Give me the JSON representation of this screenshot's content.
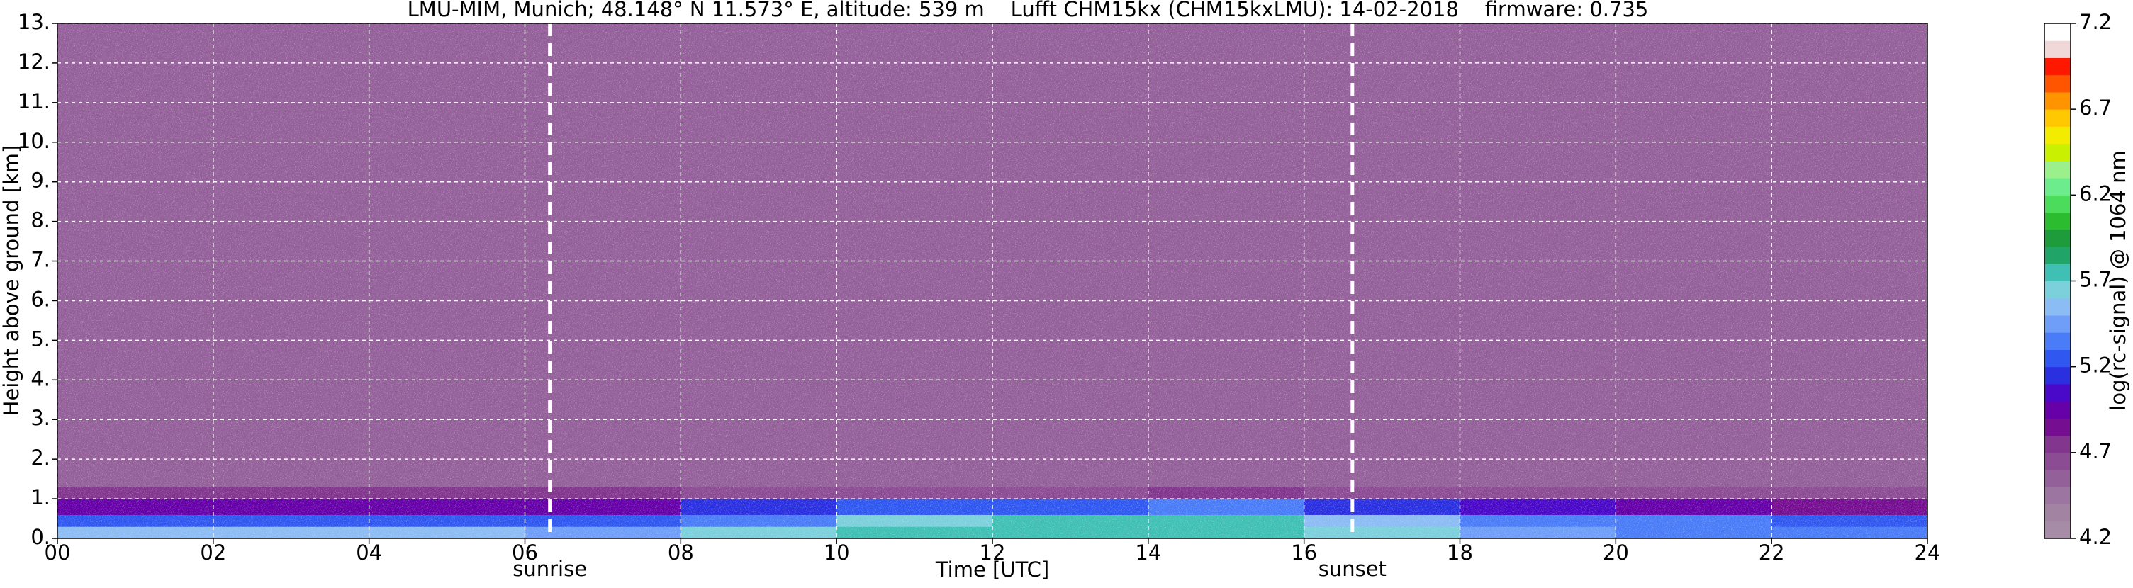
{
  "chart_data": {
    "type": "heatmap",
    "title": "LMU-MIM, Munich; 48.148° N 11.573° E, altitude: 539 m    Lufft CHM15kx (CHM15kxLMU): 14-02-2018    firmware: 0.735",
    "x_label": "Time [UTC]",
    "y_label": "Height above ground [km]",
    "colorbar_label": "log(rc-signal) @ 1064 nm",
    "xlim": [
      0,
      24
    ],
    "ylim": [
      0,
      13
    ],
    "xticks": [
      {
        "value": 0,
        "label": "00"
      },
      {
        "value": 2,
        "label": "02"
      },
      {
        "value": 4,
        "label": "04"
      },
      {
        "value": 6,
        "label": "06"
      },
      {
        "value": 8,
        "label": "08"
      },
      10,
      12,
      14,
      16,
      18,
      20,
      22,
      24
    ],
    "yticks": [
      {
        "value": 0,
        "label": "0."
      },
      {
        "value": 1,
        "label": "1."
      },
      {
        "value": 2,
        "label": "2."
      },
      {
        "value": 3,
        "label": "3."
      },
      {
        "value": 4,
        "label": "4."
      },
      {
        "value": 5,
        "label": "5."
      },
      {
        "value": 6,
        "label": "6."
      },
      {
        "value": 7,
        "label": "7."
      },
      {
        "value": 8,
        "label": "8."
      },
      {
        "value": 9,
        "label": "9."
      },
      {
        "value": 10,
        "label": "10."
      },
      {
        "value": 11,
        "label": "11."
      },
      {
        "value": 12,
        "label": "12."
      },
      {
        "value": 13,
        "label": "13."
      }
    ],
    "grid": true,
    "x_edges": [
      0,
      2,
      4,
      6,
      8,
      10,
      12,
      14,
      16,
      18,
      20,
      22,
      24
    ],
    "y_edges": [
      0,
      0.3,
      0.6,
      1.0,
      1.3,
      13
    ],
    "values": [
      [
        5.5,
        5.5,
        5.5,
        5.4,
        5.6,
        5.7,
        5.7,
        5.7,
        5.6,
        5.4,
        5.3,
        5.3
      ],
      [
        5.2,
        5.2,
        5.2,
        5.2,
        5.3,
        5.6,
        5.7,
        5.7,
        5.5,
        5.3,
        5.3,
        5.2
      ],
      [
        4.9,
        4.9,
        4.9,
        4.9,
        5.1,
        5.2,
        5.2,
        5.3,
        5.1,
        5.0,
        4.9,
        4.8
      ],
      [
        4.7,
        4.7,
        4.7,
        4.7,
        4.6,
        4.6,
        4.6,
        4.7,
        4.6,
        4.6,
        4.6,
        4.6
      ],
      [
        4.5,
        4.5,
        4.5,
        4.5,
        4.5,
        4.5,
        4.5,
        4.5,
        4.5,
        4.5,
        4.5,
        4.5
      ]
    ],
    "clim": [
      4.2,
      7.2
    ],
    "cticks": [
      4.2,
      4.7,
      5.2,
      5.7,
      6.2,
      6.7,
      7.2
    ],
    "colormap": [
      "#a68ca6",
      "#a283a2",
      "#9c76a0",
      "#94609a",
      "#8c4c94",
      "#82368e",
      "#760e92",
      "#6600a8",
      "#4a08c8",
      "#2a30e0",
      "#3058f0",
      "#4a7cf8",
      "#6e9ef8",
      "#8cbcf4",
      "#7cd0dc",
      "#40c0b4",
      "#20a468",
      "#1e9c3c",
      "#2cbc30",
      "#4cdc5c",
      "#6cec8c",
      "#9cf08c",
      "#c8f000",
      "#f4ec00",
      "#ffc800",
      "#ff9400",
      "#ff5400",
      "#ff1800",
      "#f0d8d8",
      "#ffffff"
    ],
    "events": [
      {
        "x": 6.32,
        "label": "sunrise"
      },
      {
        "x": 16.62,
        "label": "sunset"
      }
    ]
  }
}
